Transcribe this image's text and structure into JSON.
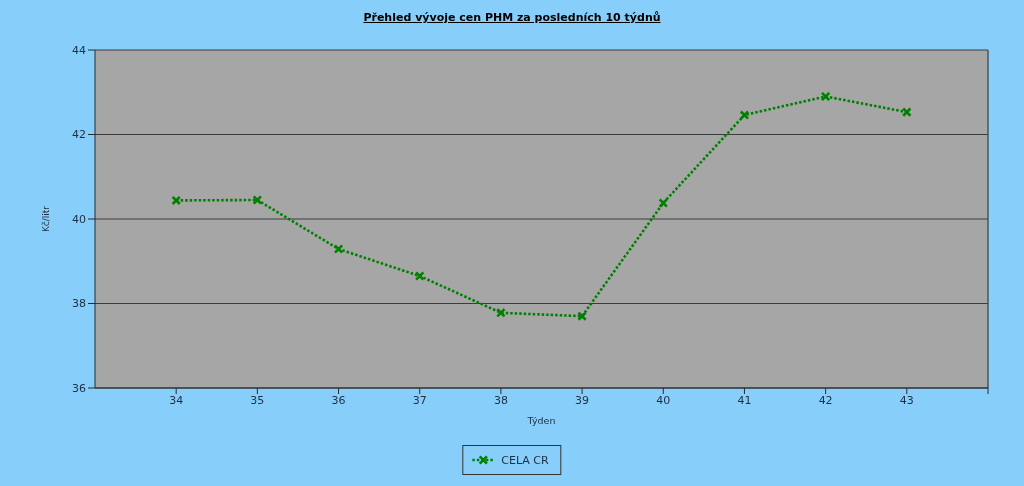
{
  "chart_data": {
    "type": "line",
    "title": "Přehled vývoje cen PHM za posledních 10 týdnů",
    "xlabel": "Týden",
    "ylabel": "Kč/litr",
    "x": [
      34,
      35,
      36,
      37,
      38,
      39,
      40,
      41,
      42,
      43
    ],
    "series": [
      {
        "name": "CELA CR",
        "color": "#008000",
        "values": [
          40.44,
          40.45,
          39.29,
          38.65,
          37.78,
          37.7,
          40.38,
          42.46,
          42.9,
          42.53
        ]
      }
    ],
    "xlim": [
      33,
      44
    ],
    "xticks": [
      34,
      35,
      36,
      37,
      38,
      39,
      40,
      41,
      42,
      43,
      {
        "value": 44,
        "label": null
      }
    ],
    "ylim": [
      36,
      44
    ],
    "yticks": [
      36,
      38,
      40,
      42,
      44
    ],
    "grid": "y",
    "legend": "bottom",
    "marker": "cross",
    "line_style": "dotted"
  }
}
